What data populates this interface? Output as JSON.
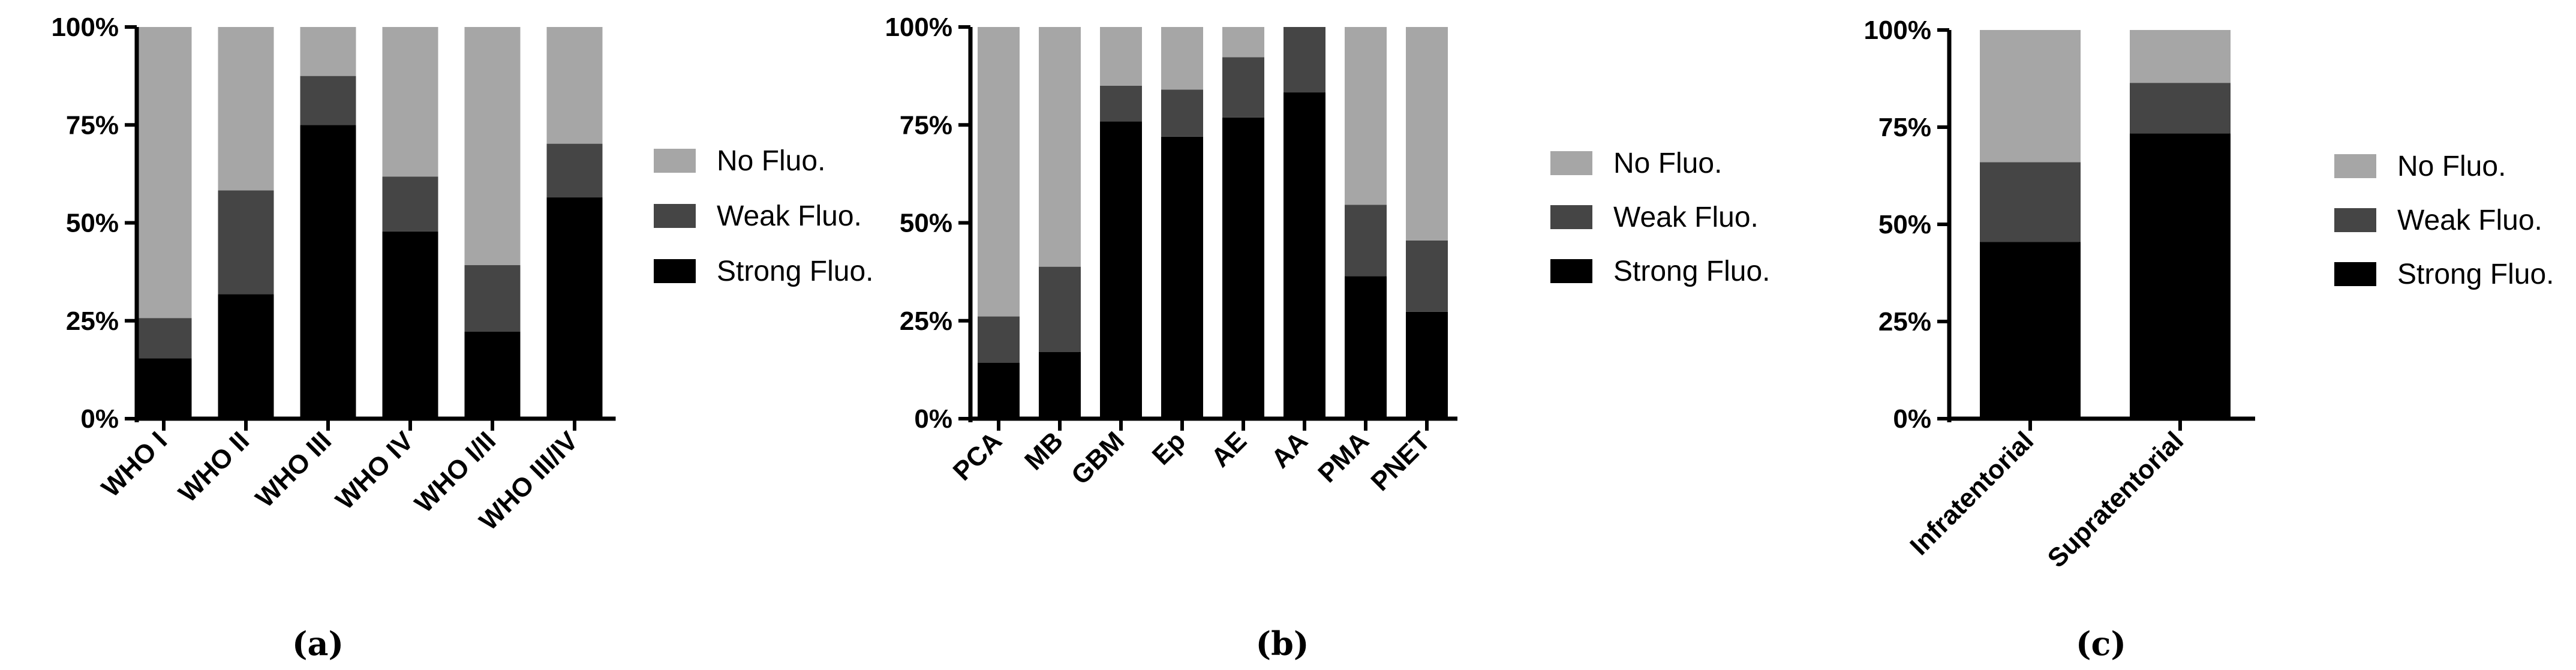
{
  "colors": {
    "No Fluo.": "#a6a6a6",
    "Weak Fluo.": "#454545",
    "Strong Fluo.": "#000000"
  },
  "chart_data": [
    {
      "type": "bar",
      "stacked": true,
      "panel": "(a)",
      "categories": [
        "WHO I",
        "WHO II",
        "WHO III",
        "WHO IV",
        "WHO I/II",
        "WHO III/IV"
      ],
      "series": [
        {
          "name": "Strong Fluo.",
          "values": [
            15.4,
            31.8,
            75.0,
            47.8,
            22.2,
            56.5
          ]
        },
        {
          "name": "Weak Fluo.",
          "values": [
            10.3,
            26.5,
            12.5,
            14.0,
            17.0,
            13.7
          ]
        },
        {
          "name": "No Fluo.",
          "values": [
            74.3,
            41.7,
            12.5,
            38.2,
            60.8,
            29.8
          ]
        }
      ],
      "y_ticks": [
        "0%",
        "25%",
        "50%",
        "75%",
        "100%"
      ],
      "ylim": [
        0,
        100
      ],
      "legend": [
        "No Fluo.",
        "Weak Fluo.",
        "Strong Fluo."
      ],
      "legend_position": "right"
    },
    {
      "type": "bar",
      "stacked": true,
      "panel": "(b)",
      "categories": [
        "PCA",
        "MB",
        "GBM",
        "Ep",
        "AE",
        "AA",
        "PMA",
        "PNET"
      ],
      "series": [
        {
          "name": "Strong Fluo.",
          "values": [
            14.3,
            17.0,
            75.9,
            72.0,
            76.9,
            83.3,
            36.4,
            27.3
          ]
        },
        {
          "name": "Weak Fluo.",
          "values": [
            11.8,
            21.8,
            9.1,
            12.0,
            15.4,
            16.7,
            18.2,
            18.2
          ]
        },
        {
          "name": "No Fluo.",
          "values": [
            73.9,
            61.2,
            15.0,
            16.0,
            7.7,
            0.0,
            45.4,
            54.5
          ]
        }
      ],
      "y_ticks": [
        "0%",
        "25%",
        "50%",
        "75%",
        "100%"
      ],
      "ylim": [
        0,
        100
      ],
      "legend": [
        "No Fluo.",
        "Weak Fluo.",
        "Strong Fluo."
      ],
      "legend_position": "right"
    },
    {
      "type": "bar",
      "stacked": true,
      "panel": "(c)",
      "categories": [
        "Infratentorial",
        "Supratentorial"
      ],
      "series": [
        {
          "name": "Strong Fluo.",
          "values": [
            45.5,
            73.4
          ]
        },
        {
          "name": "Weak Fluo.",
          "values": [
            20.5,
            13.0
          ]
        },
        {
          "name": "No Fluo.",
          "values": [
            34.0,
            13.6
          ]
        }
      ],
      "y_ticks": [
        "0%",
        "25%",
        "50%",
        "75%",
        "100%"
      ],
      "ylim": [
        0,
        100
      ],
      "legend": [
        "No Fluo.",
        "Weak Fluo.",
        "Strong Fluo."
      ],
      "legend_position": "right"
    }
  ]
}
